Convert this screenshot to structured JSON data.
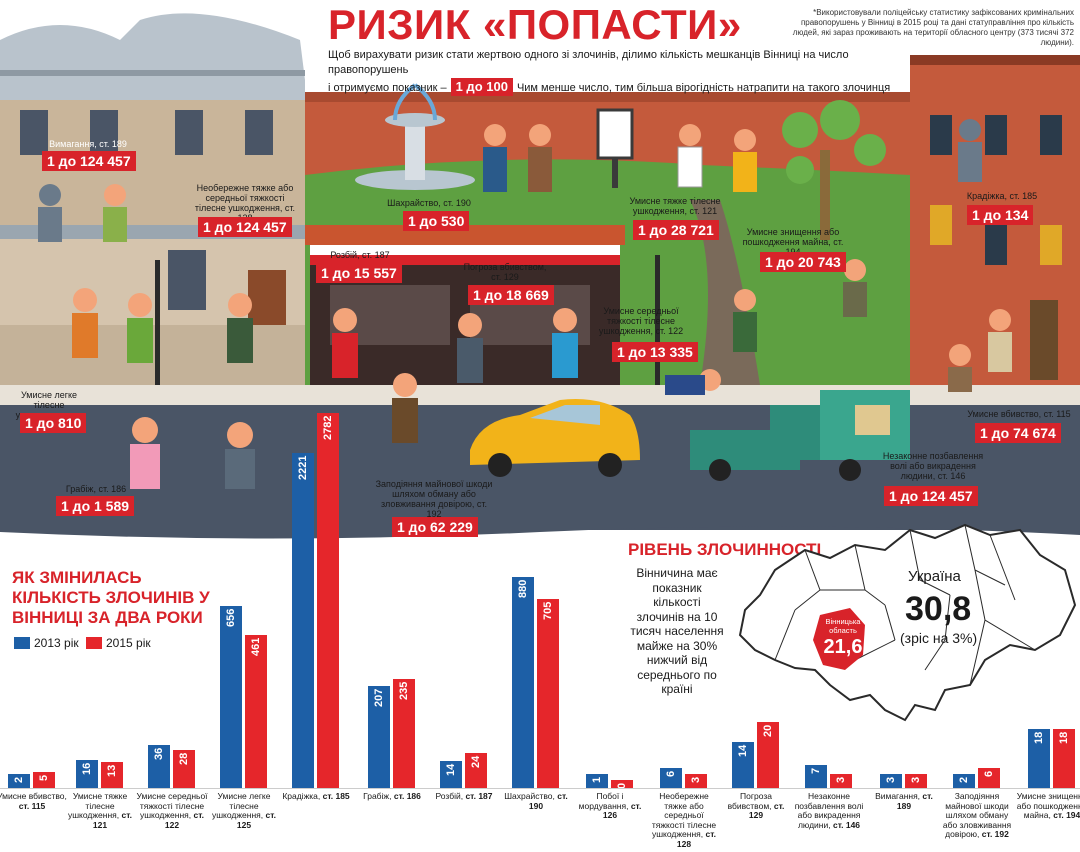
{
  "header": {
    "title": "РИЗИК «ПОПАСТИ»",
    "note": "*Використовували поліцейську статистику зафіксованих кримінальних правопорушень у Вінниці в 2015 році та дані статуправління про кількість людей, які зараз проживають на території обласного центру (373 тисячі 372 людини).",
    "lead_1": "Щоб вирахувати ризик стати жертвою одного зі злочинів, ділимо кількість мешканців Вінниці на число правопорушень",
    "lead_2": "і отримуємо показник –",
    "lead_rate": "1 до 100",
    "lead_3": "Чим менше число, тим більша вірогідність натрапити на такого злочинця"
  },
  "risk_labels": [
    {
      "id": "vymagannia",
      "label": "Вимагання, ст. 189",
      "rate": "1 до 124 457"
    },
    {
      "id": "neoberezhne",
      "label": "Необережне тяжке або середньої тяжкості тілесне ушкодження, ст. 128",
      "rate": "1 до 124 457"
    },
    {
      "id": "shakhraistvo",
      "label": "Шахрайство, ст. 190",
      "rate": "1 до 530"
    },
    {
      "id": "rozbii",
      "label": "Розбій, ст. 187",
      "rate": "1 до 15 557"
    },
    {
      "id": "pohroza",
      "label": "Погроза вбивством, ст. 129",
      "rate": "1 до 18 669"
    },
    {
      "id": "umysne_tiazhke",
      "label": "Умисне тяжке тілесне ушкодження, ст. 121",
      "rate": "1 до 28 721"
    },
    {
      "id": "znyshchennia",
      "label": "Умисне знищення або пошкодження майна, ст. 194",
      "rate": "1 до 20 743"
    },
    {
      "id": "kradizhka",
      "label": "Крадіжка, ст. 185",
      "rate": "1 до 134"
    },
    {
      "id": "serednoi",
      "label": "Умисне середньої тяжкості тілесне ушкодження, ст. 122",
      "rate": "1 до 13 335"
    },
    {
      "id": "lehke",
      "label": "Умисне легке тілесне ушкодження, ст. 125",
      "rate": "1 до 810"
    },
    {
      "id": "vbyvstvo",
      "label": "Умисне вбивство, ст. 115",
      "rate": "1 до 74 674"
    },
    {
      "id": "hrabizh",
      "label": "Грабіж, ст. 186",
      "rate": "1 до 1 589"
    },
    {
      "id": "zapodiiannia",
      "label": "Заподіяння майнової шкоди шляхом обману або зловживання довірою, ст. 192",
      "rate": "1 до 62 229"
    },
    {
      "id": "pozbavlennia",
      "label": "Незаконне позбавлення волі або викрадення людини, ст. 146",
      "rate": "1 до 124 457"
    }
  ],
  "chart_section": {
    "title_line1": "ЯК ЗМІНИЛАСЬ",
    "title_line2": "КІЛЬКІСТЬ ЗЛОЧИНІВ У",
    "title_line3": "ВІННИЦІ ЗА ДВА РОКИ"
  },
  "chart_data": {
    "type": "bar",
    "title": "ЯК ЗМІНИЛАСЬ КІЛЬКІСТЬ ЗЛОЧИНІВ У ВІННИЦІ ЗА ДВА РОКИ",
    "series": [
      {
        "name": "2013 рік",
        "color": "#1d5fa6",
        "values": [
          2,
          16,
          36,
          656,
          2221,
          207,
          14,
          880,
          1,
          6,
          14,
          7,
          3,
          2,
          18
        ]
      },
      {
        "name": "2015 рік",
        "color": "#e5262b",
        "values": [
          5,
          13,
          28,
          461,
          2782,
          235,
          24,
          705,
          0,
          3,
          20,
          3,
          3,
          6,
          18
        ]
      }
    ],
    "categories": [
      {
        "name": "Умисне вбивство,",
        "art": "ст. 115"
      },
      {
        "name": "Умисне тяжке тілесне ушкодження,",
        "art": "ст. 121"
      },
      {
        "name": "Умисне середньої тяжкості тілесне ушкодження,",
        "art": "ст. 122"
      },
      {
        "name": "Умисне легке тілесне ушкодження,",
        "art": "ст. 125"
      },
      {
        "name": "Крадіжка,",
        "art": "ст. 185"
      },
      {
        "name": "Грабіж,",
        "art": "ст. 186"
      },
      {
        "name": "Розбій,",
        "art": "ст. 187"
      },
      {
        "name": "Шахрайство,",
        "art": "ст. 190"
      },
      {
        "name": "Побої і мордування,",
        "art": "ст. 126"
      },
      {
        "name": "Необережне тяжке або середньої тяжкості тілесне ушкодження,",
        "art": "ст. 128"
      },
      {
        "name": "Погроза вбивством,",
        "art": "ст. 129"
      },
      {
        "name": "Незаконне позбавлення волі або викрадення людини,",
        "art": "ст. 146"
      },
      {
        "name": "Вимагання,",
        "art": "ст. 189"
      },
      {
        "name": "Заподіяння майнової шкоди шляхом обману або зловживання довірою,",
        "art": "ст. 192"
      },
      {
        "name": "Умисне знищення або пошкодження майна,",
        "art": "ст. 194"
      }
    ],
    "legend_position": "top-left"
  },
  "crime_level": {
    "title": "РІВЕНЬ ЗЛОЧИННОСТІ",
    "text": "Вінничина має показник кількості злочинів на 10 тисяч населення майже на 30% нижчий від середнього по країні",
    "ukraine_label": "Україна",
    "ukraine_value": "30,8",
    "ukraine_growth": "(зріс на 3%)",
    "region_label": "Вінницька область",
    "region_value": "21,6"
  },
  "colors": {
    "accent": "#d8232a",
    "blue": "#1d5fa6",
    "red": "#e5262b",
    "road": "#4a5566",
    "grass": "#5ea041"
  }
}
